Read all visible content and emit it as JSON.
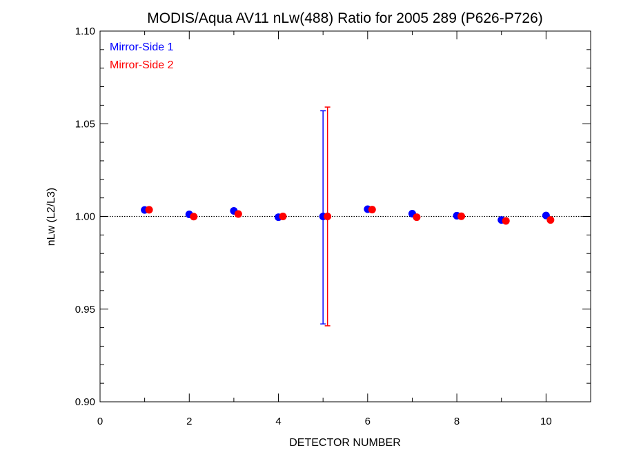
{
  "chart_data": {
    "type": "scatter",
    "title": "MODIS/Aqua AV11 nLw(488) Ratio for 2005 289 (P626-P726)",
    "xlabel": "DETECTOR NUMBER",
    "ylabel": "nLw (L2/L3)",
    "xlim": [
      0,
      11
    ],
    "ylim": [
      0.9,
      1.1
    ],
    "x_ticks": [
      0,
      2,
      4,
      6,
      8,
      10
    ],
    "x_tick_labels": [
      "0",
      "2",
      "4",
      "6",
      "8",
      "10"
    ],
    "y_ticks": [
      0.9,
      0.95,
      1.0,
      1.05,
      1.1
    ],
    "y_tick_labels": [
      "0.90",
      "0.95",
      "1.00",
      "1.05",
      "1.10"
    ],
    "reference_line": {
      "y": 1.0,
      "style": "dotted"
    },
    "legend_position": "top-left",
    "series": [
      {
        "name": "Mirror-Side 1",
        "color": "#0000ff",
        "x": [
          1,
          2,
          3,
          4,
          5,
          6,
          7,
          8,
          9,
          10
        ],
        "y": [
          1.0035,
          1.0011,
          1.003,
          0.9996,
          1.0,
          1.0039,
          1.0015,
          1.0004,
          0.9981,
          1.0005
        ],
        "error_bar": {
          "x": 5,
          "low": 0.942,
          "high": 1.057
        }
      },
      {
        "name": "Mirror-Side 2",
        "color": "#ff0000",
        "x": [
          1.1,
          2.1,
          3.1,
          4.1,
          5.1,
          6.1,
          7.1,
          8.1,
          9.1,
          10.1
        ],
        "y": [
          1.0036,
          0.9999,
          1.0013,
          1.0,
          1.0,
          1.0037,
          0.9996,
          1.0001,
          0.9976,
          0.9981
        ],
        "error_bar": {
          "x": 5.1,
          "low": 0.941,
          "high": 1.059
        }
      }
    ]
  }
}
